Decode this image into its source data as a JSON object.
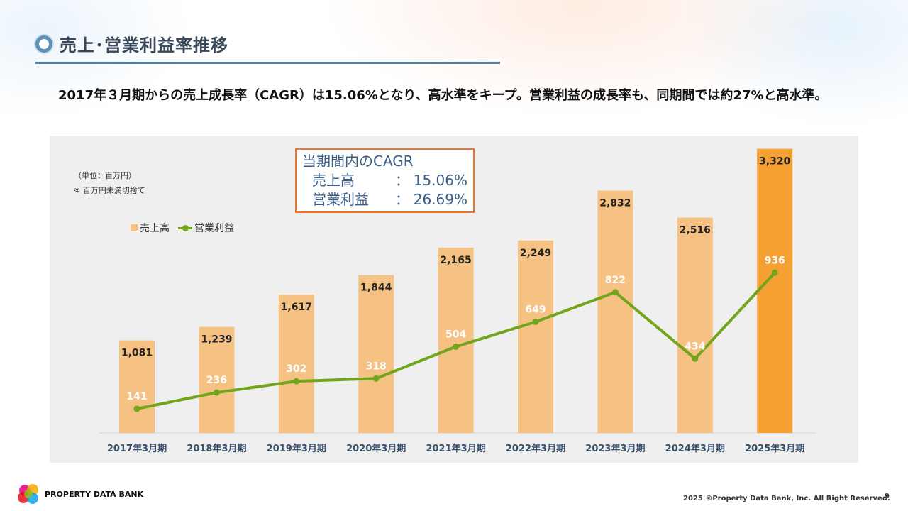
{
  "header": {
    "title": "売上･営業利益率推移"
  },
  "lead": "2017年３月期からの売上成長率（CAGR）は15.06%となり、高水準をキープ。営業利益の成長率も、同期間では約27%と高水準。",
  "notes": {
    "unit": "（単位：百万円）",
    "truncation": "※ 百万円未満切捨て"
  },
  "cagr_box": {
    "title": "当期間内のCAGR",
    "rows": [
      {
        "label": "売上高",
        "sep": "：",
        "value": "15.06%"
      },
      {
        "label": "営業利益",
        "sep": "：",
        "value": "26.69%"
      }
    ]
  },
  "legend": {
    "bar_label": "売上高",
    "line_label": "営業利益"
  },
  "chart_data": {
    "type": "bar",
    "categories": [
      "2017年3月期",
      "2018年3月期",
      "2019年3月期",
      "2020年3月期",
      "2021年3月期",
      "2022年3月期",
      "2023年3月期",
      "2024年3月期",
      "2025年3月期"
    ],
    "series": [
      {
        "name": "売上高",
        "type": "bar",
        "values": [
          1081,
          1239,
          1617,
          1844,
          2165,
          2249,
          2832,
          2516,
          3320
        ]
      },
      {
        "name": "営業利益",
        "type": "line",
        "values": [
          141,
          236,
          302,
          318,
          504,
          649,
          822,
          434,
          936
        ]
      }
    ],
    "data_labels": {
      "bars": [
        "1,081",
        "1,239",
        "1,617",
        "1,844",
        "2,165",
        "2,249",
        "2,832",
        "2,516",
        "3,320"
      ],
      "line": [
        "141",
        "236",
        "302",
        "318",
        "504",
        "649",
        "822",
        "434",
        "936"
      ]
    },
    "ylim": [
      0,
      3400
    ],
    "line_ylim": [
      0,
      1700
    ],
    "highlight_index": 8,
    "grid": false,
    "legend_position": "top-left",
    "colors": {
      "bar": "#f5c283",
      "bar_highlight": "#f4a033",
      "line": "#73a51c",
      "line_label": "#ffffff",
      "bar_label": "#222222",
      "axis_label": "#3b4f6b"
    }
  },
  "footer": {
    "brand": "PROPERTY DATA BANK",
    "copyright": "2025 ©Property Data Bank, Inc. All Right Reserved.",
    "page_number": "9"
  }
}
